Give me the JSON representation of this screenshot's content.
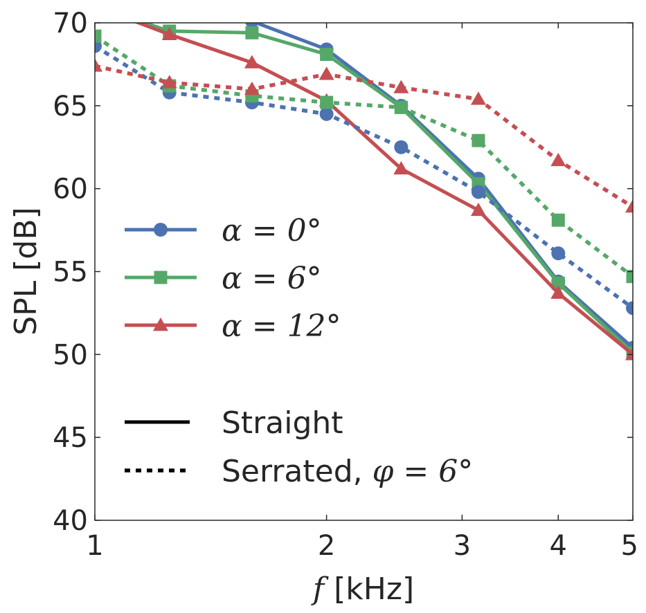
{
  "chart_data": {
    "type": "line",
    "xlabel_symbol": "f",
    "xlabel_unit": "[kHz]",
    "ylabel": "SPL [dB]",
    "xscale": "log",
    "xlim": [
      1,
      5
    ],
    "ylim": [
      40,
      70
    ],
    "x_ticks": [
      1,
      2,
      3,
      4,
      5
    ],
    "x_tick_labels": [
      "1",
      "2",
      "3",
      "4",
      "5"
    ],
    "y_ticks": [
      40,
      45,
      50,
      55,
      60,
      65,
      70
    ],
    "y_tick_labels": [
      "40",
      "45",
      "50",
      "55",
      "60",
      "65",
      "70"
    ],
    "grid": false,
    "x": [
      1.0,
      1.25,
      1.6,
      2.0,
      2.5,
      3.15,
      4.0,
      5.0
    ],
    "series": [
      {
        "group": "alpha0",
        "style": "solid",
        "marker": "circle",
        "color": "#4c72b0",
        "values": [
          71.5,
          71.0,
          70.1,
          68.4,
          65.0,
          60.6,
          54.4,
          50.4
        ]
      },
      {
        "group": "alpha6",
        "style": "solid",
        "marker": "square",
        "color": "#55a868",
        "values": [
          71.0,
          69.5,
          69.4,
          68.1,
          64.9,
          60.3,
          54.3,
          50.1
        ]
      },
      {
        "group": "alpha12",
        "style": "solid",
        "marker": "triangle",
        "color": "#c44e52",
        "values": [
          71.0,
          69.3,
          67.6,
          65.3,
          61.2,
          58.7,
          53.7,
          50.0
        ]
      },
      {
        "group": "alpha0",
        "style": "dashed",
        "marker": "circle",
        "color": "#4c72b0",
        "values": [
          68.6,
          65.8,
          65.2,
          64.5,
          62.5,
          59.8,
          56.1,
          52.8
        ]
      },
      {
        "group": "alpha6",
        "style": "dashed",
        "marker": "square",
        "color": "#55a868",
        "values": [
          69.2,
          66.2,
          65.6,
          65.2,
          64.9,
          62.9,
          58.1,
          54.7
        ]
      },
      {
        "group": "alpha12",
        "style": "dashed",
        "marker": "triangle",
        "color": "#c44e52",
        "values": [
          67.4,
          66.4,
          66.0,
          66.9,
          66.1,
          65.4,
          61.7,
          58.9
        ]
      }
    ],
    "legend": {
      "placement": "left",
      "entries": [
        {
          "symbol": "α",
          "eq": " = ",
          "value": "0",
          "unit": "°",
          "marker": "circle",
          "color": "#4c72b0"
        },
        {
          "symbol": "α",
          "eq": " = ",
          "value": "6",
          "unit": "°",
          "marker": "square",
          "color": "#55a868"
        },
        {
          "symbol": "α",
          "eq": " = ",
          "value": "12",
          "unit": "°",
          "marker": "triangle",
          "color": "#c44e52"
        }
      ],
      "style_entries": [
        {
          "label": "Straight",
          "style": "solid",
          "color": "#000000"
        },
        {
          "label": "Serrated, ",
          "symbol": "φ",
          "eq": " = ",
          "value": "6",
          "unit": "°",
          "style": "dashed",
          "color": "#000000"
        }
      ]
    }
  }
}
